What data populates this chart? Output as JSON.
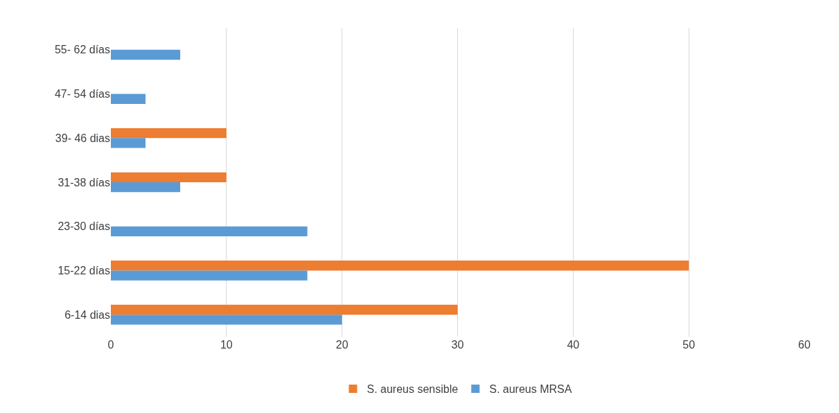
{
  "chart_data": {
    "type": "bar",
    "orientation": "horizontal",
    "categories": [
      "55- 62 días",
      "47- 54 días",
      "39- 46 dias",
      "31-38 días",
      "23-30 días",
      "15-22 días",
      "6-14 dias"
    ],
    "series": [
      {
        "name": "S. aureus sensible",
        "color": "#ed7d31",
        "values": [
          null,
          null,
          10,
          10,
          null,
          50,
          30
        ]
      },
      {
        "name": "S. aureus MRSA",
        "color": "#5b9bd5",
        "values": [
          6,
          3,
          3,
          6,
          17,
          17,
          20
        ]
      }
    ],
    "xlim": [
      0,
      60
    ],
    "xticks": [
      0,
      10,
      20,
      30,
      40,
      50,
      60
    ],
    "grid": "x",
    "legend": "bottom"
  }
}
